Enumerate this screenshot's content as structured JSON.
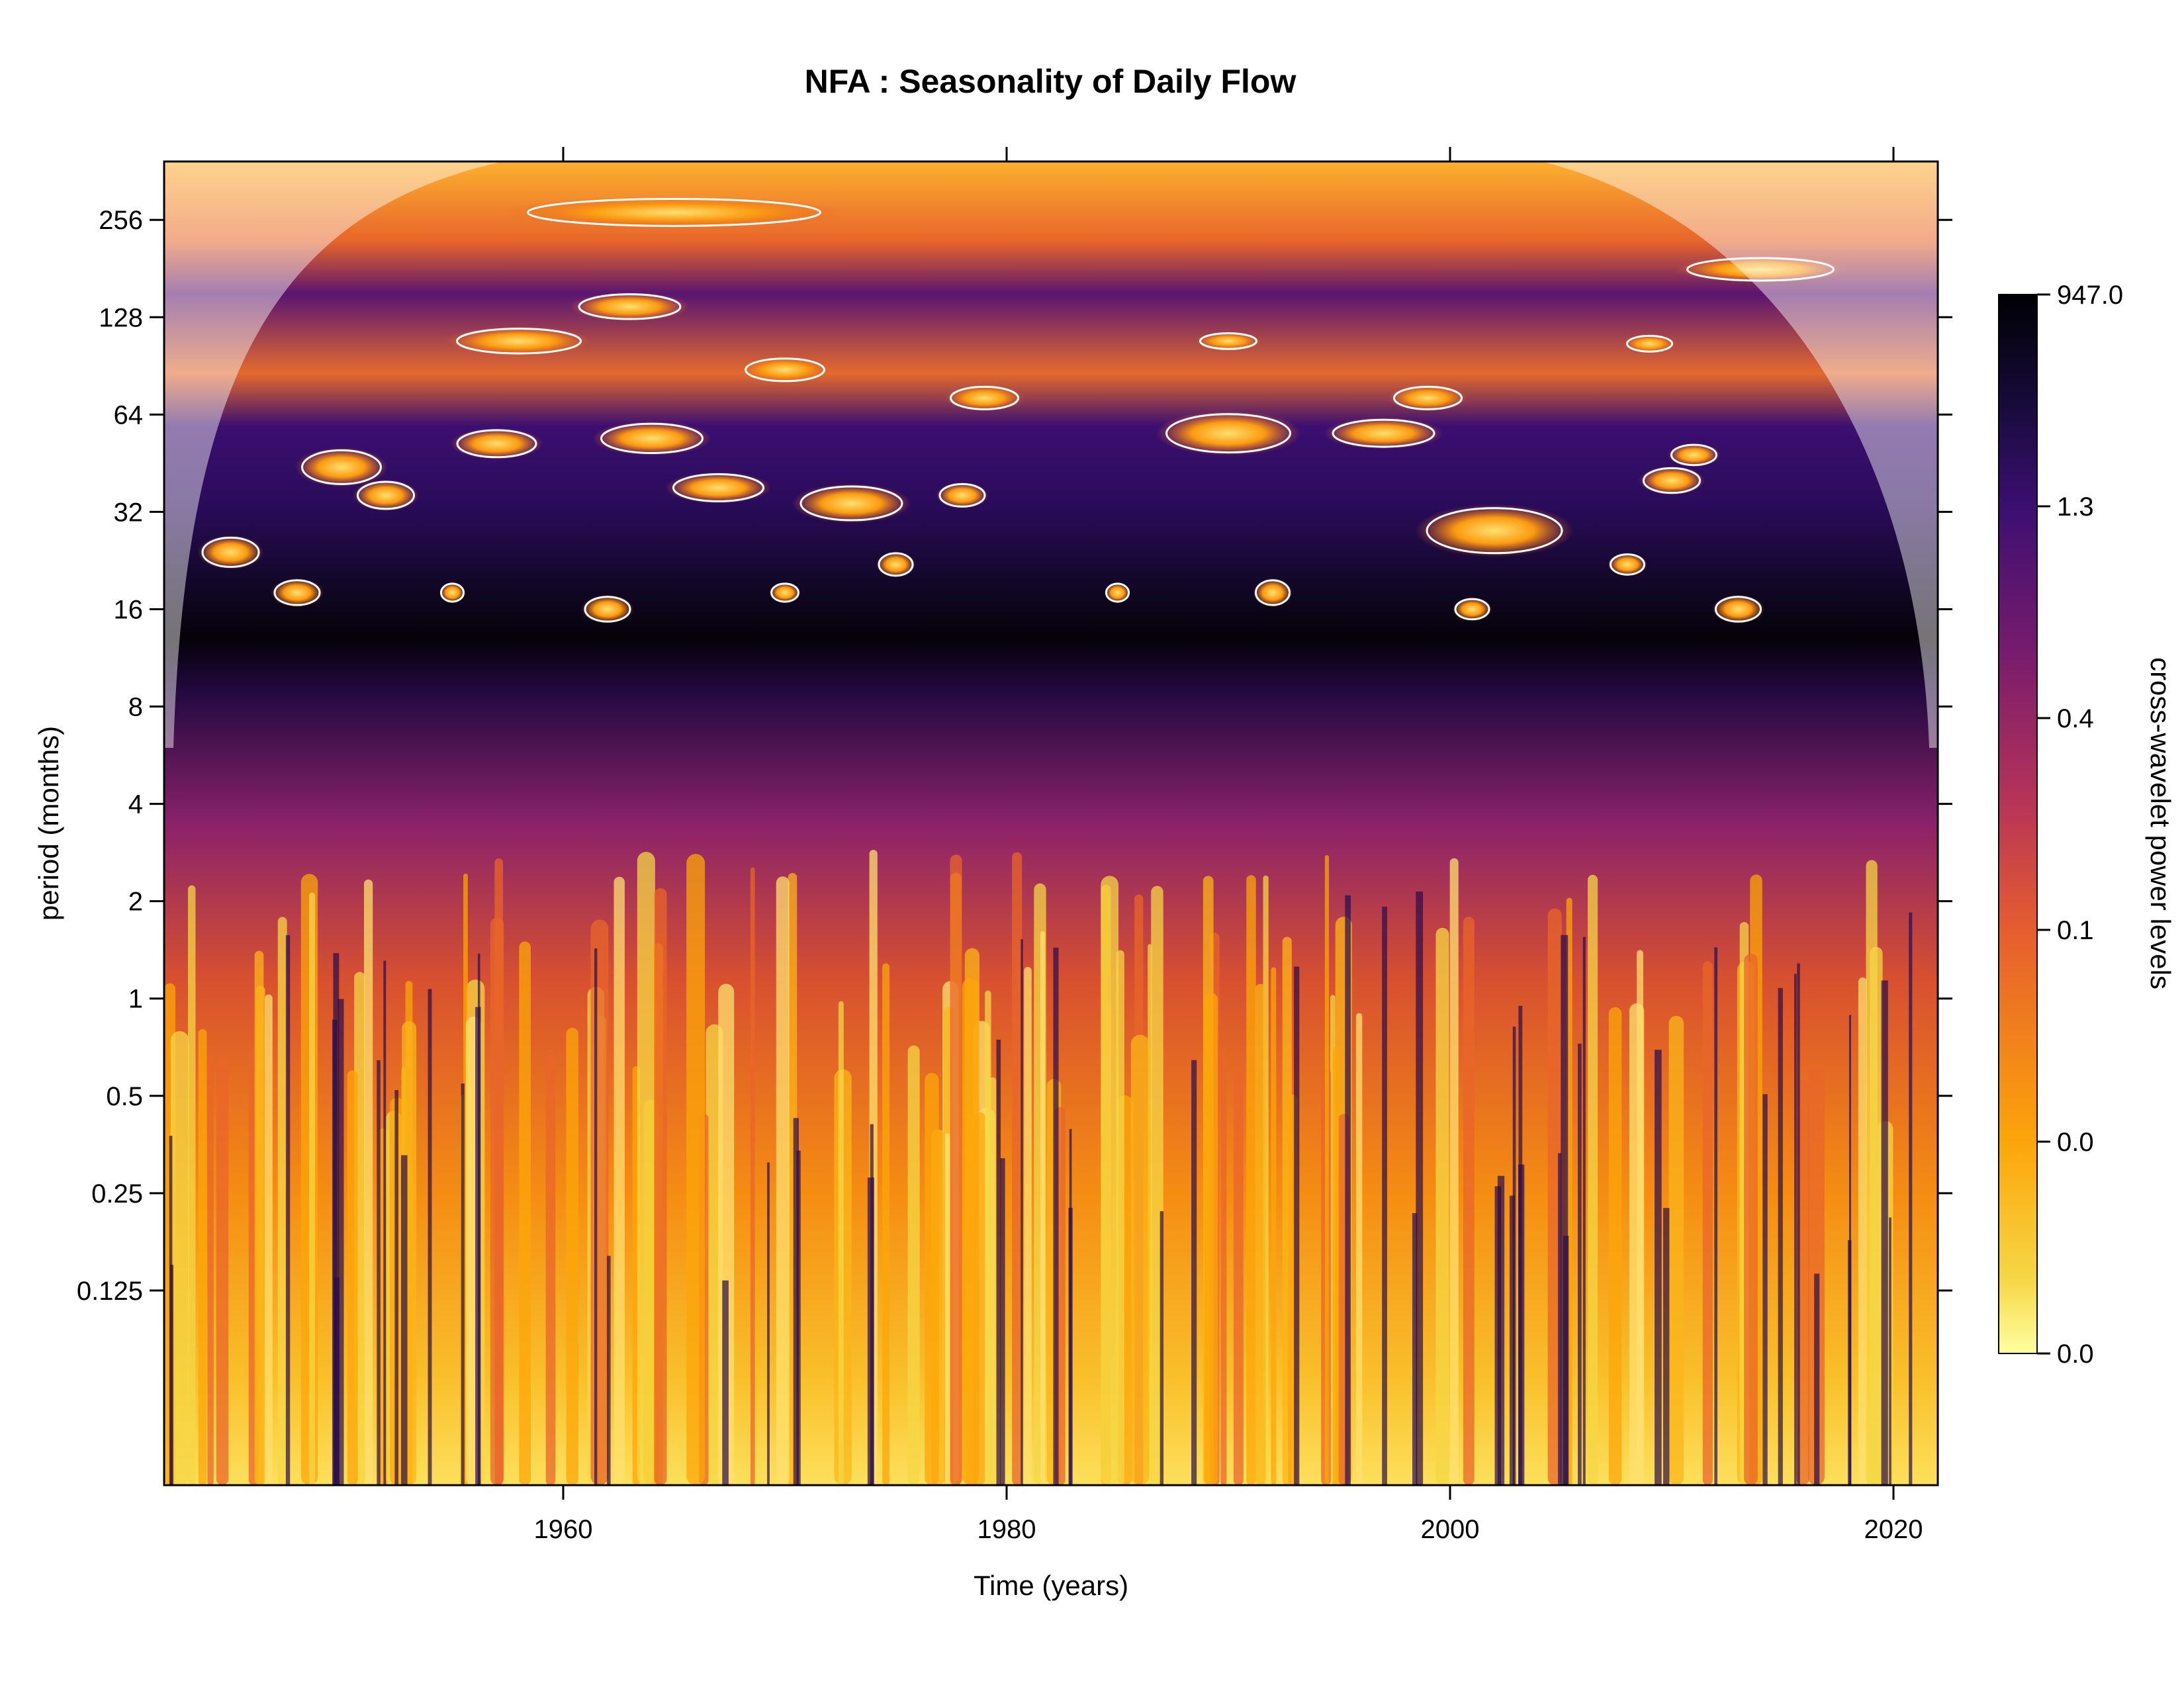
{
  "chart_data": {
    "type": "heatmap",
    "title": "NFA : Seasonality of Daily Flow",
    "xlabel": "Time (years)",
    "ylabel": "period (months)",
    "xlim": [
      1942,
      2022
    ],
    "ylim_log2": [
      -5,
      8.6
    ],
    "x_ticks": [
      {
        "value": 1960,
        "label": "1960"
      },
      {
        "value": 1980,
        "label": "1980"
      },
      {
        "value": 2000,
        "label": "2000"
      },
      {
        "value": 2020,
        "label": "2020"
      }
    ],
    "y_ticks": [
      {
        "value": 256,
        "label": "256"
      },
      {
        "value": 128,
        "label": "128"
      },
      {
        "value": 64,
        "label": "64"
      },
      {
        "value": 32,
        "label": "32"
      },
      {
        "value": 16,
        "label": "16"
      },
      {
        "value": 8,
        "label": "8"
      },
      {
        "value": 4,
        "label": "4"
      },
      {
        "value": 2,
        "label": "2"
      },
      {
        "value": 1,
        "label": "1"
      },
      {
        "value": 0.5,
        "label": "0.5"
      },
      {
        "value": 0.25,
        "label": "0.25"
      },
      {
        "value": 0.125,
        "label": "0.125"
      }
    ],
    "legend": {
      "title": "cross-wavelet power levels",
      "placement": "right",
      "labels": [
        "947.0",
        "1.3",
        "0.4",
        "0.1",
        "0.0",
        "0.0"
      ],
      "colors": [
        "#ffffa0",
        "#f6d746",
        "#fca50a",
        "#e65d2f",
        "#b63458",
        "#781c6d",
        "#3b0f70",
        "#160b39",
        "#000004"
      ]
    },
    "colors": {
      "high": "#000004",
      "mid_high": "#3b0f70",
      "mid": "#b63458",
      "low": "#fca50a",
      "lowest": "#ffffa0",
      "contour": "#ffffff"
    }
  }
}
